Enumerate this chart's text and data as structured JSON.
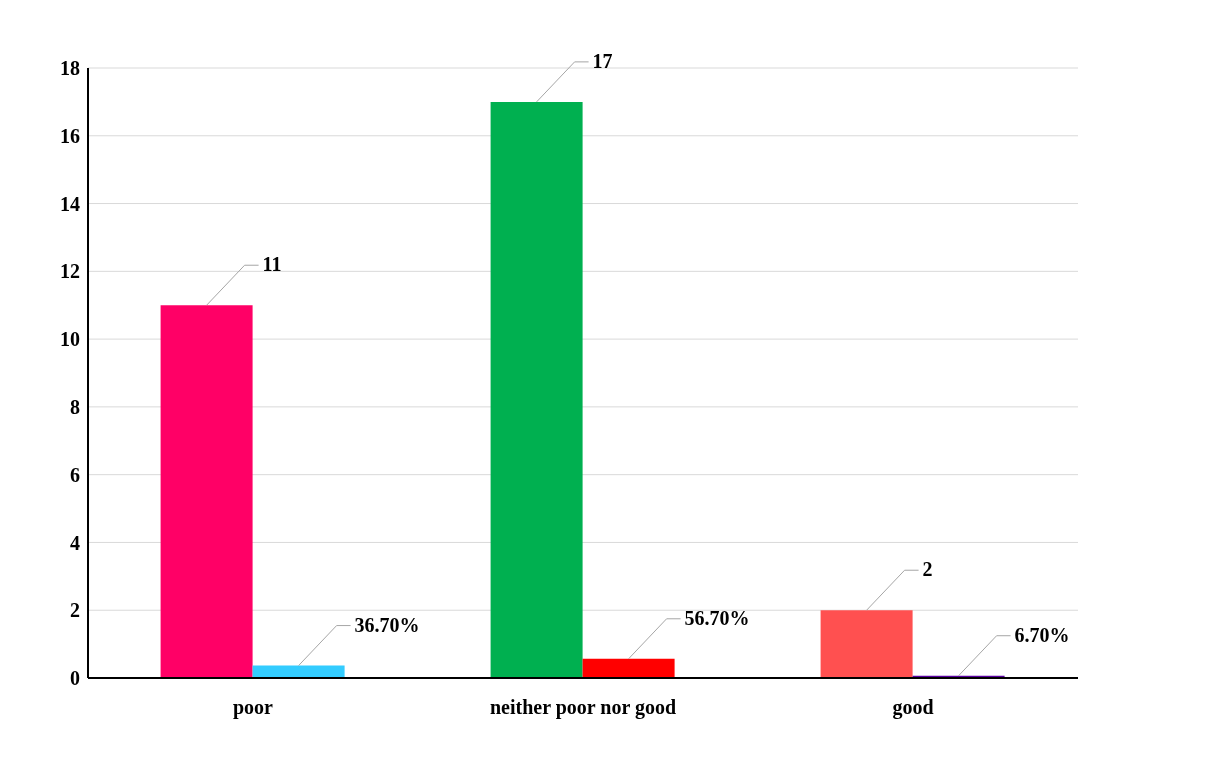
{
  "chart_data": {
    "type": "bar",
    "categories": [
      "poor",
      "neither poor nor good",
      "good"
    ],
    "series": [
      {
        "colors": [
          "#ff0066",
          "#00b050",
          "#ff5050"
        ],
        "values": [
          11,
          17,
          2
        ],
        "value_labels": [
          "11",
          "17",
          "2"
        ]
      },
      {
        "colors": [
          "#33ccff",
          "#ff0000",
          "#5a00a0"
        ],
        "values": [
          0.367,
          0.567,
          0.067
        ],
        "value_labels": [
          "36.70%",
          "56.70%",
          "6.70%"
        ]
      }
    ],
    "ylim": [
      0,
      18
    ],
    "yticks": [
      0,
      2,
      4,
      6,
      8,
      10,
      12,
      14,
      16,
      18
    ],
    "grid": "y"
  }
}
